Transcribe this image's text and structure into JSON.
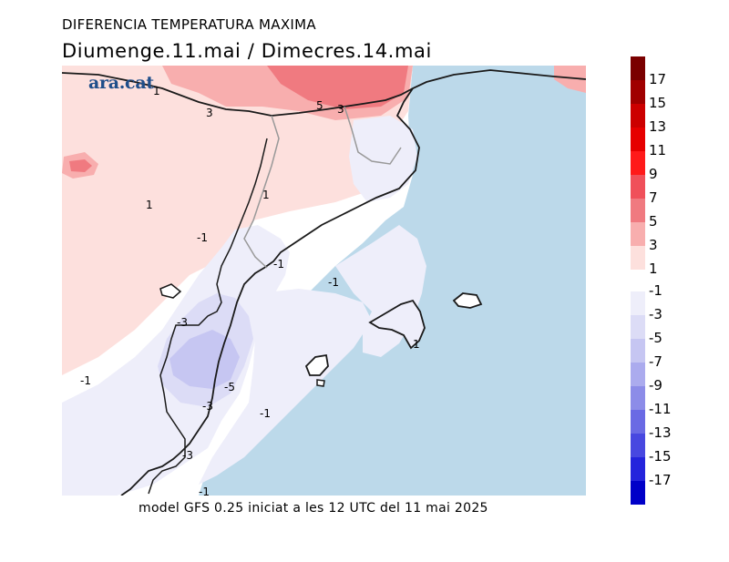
{
  "header": {
    "title": "DIFERENCIA TEMPERATURA MAXIMA",
    "subtitle": "Diumenge.11.mai  /  Dimecres.14.mai"
  },
  "logo": {
    "text": "ara.cat"
  },
  "footer": {
    "text": "model GFS 0.25 iniciat a les 12 UTC del 11 mai 2025"
  },
  "legend": {
    "positive": [
      {
        "label": "17",
        "color": "#7a0000"
      },
      {
        "label": "15",
        "color": "#a00000"
      },
      {
        "label": "13",
        "color": "#cc0000"
      },
      {
        "label": "11",
        "color": "#e60000"
      },
      {
        "label": "9",
        "color": "#ff1a1a"
      },
      {
        "label": "7",
        "color": "#f0505a"
      },
      {
        "label": "5",
        "color": "#f07a80"
      },
      {
        "label": "3",
        "color": "#f8aeae"
      },
      {
        "label": "1",
        "color": "#fde0dd"
      }
    ],
    "negative": [
      {
        "label": "-1",
        "color": "#eeeefa"
      },
      {
        "label": "-3",
        "color": "#dcdcf6"
      },
      {
        "label": "-5",
        "color": "#c6c6f2"
      },
      {
        "label": "-7",
        "color": "#ababee"
      },
      {
        "label": "-9",
        "color": "#8c8ce8"
      },
      {
        "label": "-11",
        "color": "#6a6ae4"
      },
      {
        "label": "-13",
        "color": "#4848e0"
      },
      {
        "label": "-15",
        "color": "#2424dc"
      },
      {
        "label": "-17",
        "color": "#0000c8"
      }
    ]
  },
  "map_labels": [
    "1",
    "3",
    "5",
    "3",
    "1",
    "1",
    "-1",
    "-1",
    "-1",
    "-3",
    "-5",
    "-3",
    "-1",
    "-3",
    "-1",
    "-1",
    "1"
  ]
}
